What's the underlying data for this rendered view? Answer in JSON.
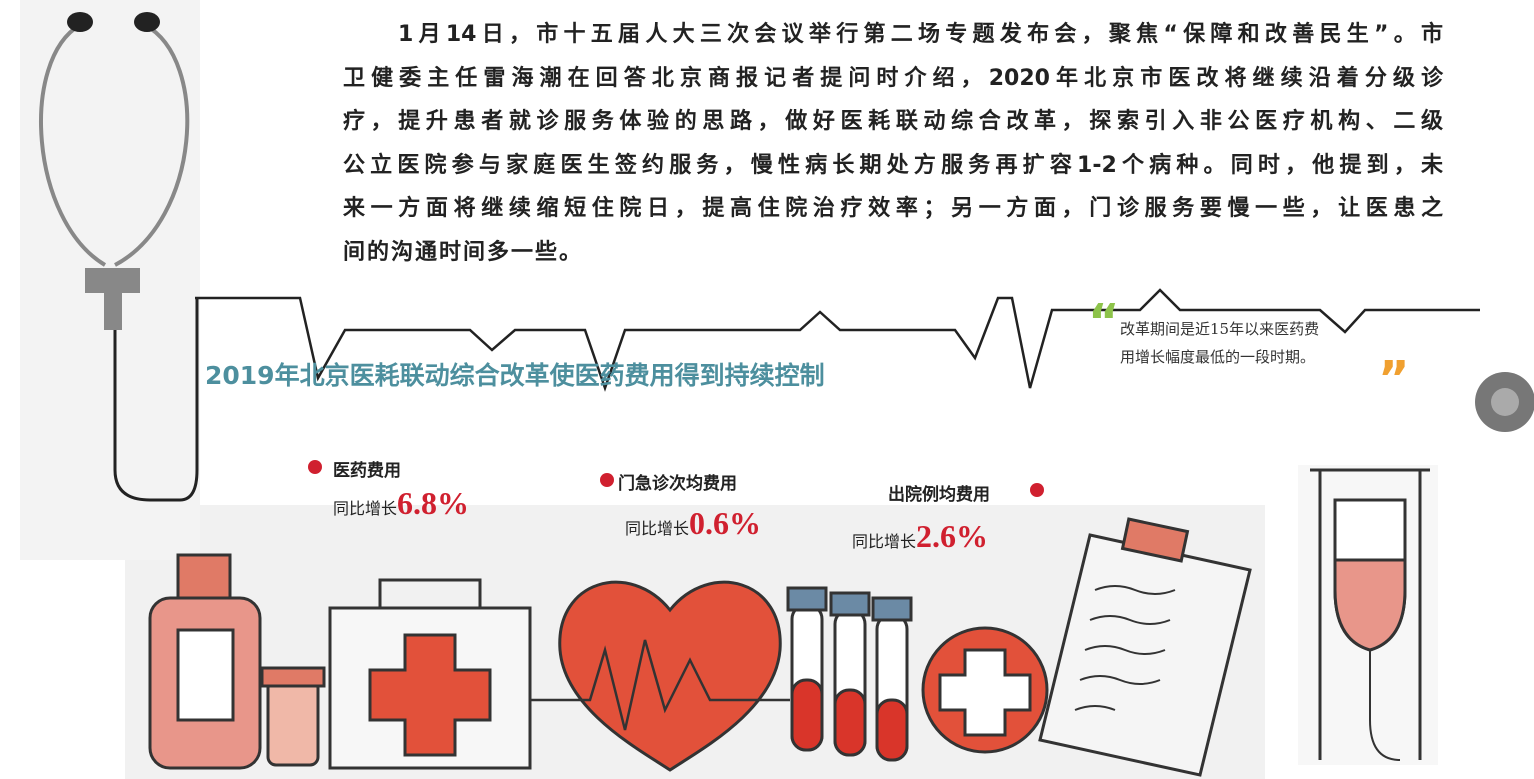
{
  "article": {
    "lines": [
      "1月14日，市十五届人大三次会议举行第二场专题发布会，聚焦“保障和改善民生”。市",
      "卫健委主任雷海潮在回答北京商报记者提问时介绍，2020年北京市医改将继续沿着分级诊",
      "疗，提升患者就诊服务体验的思路，做好医耗联动综合改革，探索引入非公医疗机构、二级",
      "公立医院参与家庭医生签约服务，慢性病长期处方服务再扩容1-2个病种。同时，他提到，未",
      "来一方面将继续缩短住院日，提高住院治疗效率；另一方面，门诊服务要慢一些，让医患之",
      "间的沟通时间多一些。"
    ]
  },
  "graphic": {
    "title": "2019年北京医耗联动综合改革使医药费用得到持续控制",
    "quote": [
      "改革期间是近15年以来医药费",
      "用增长幅度最低的一段时期。"
    ],
    "stats": [
      {
        "label": "医药费用",
        "prefix": "同比增长",
        "value": "6.8%"
      },
      {
        "label": "门急诊次均费用",
        "prefix": "同比增长",
        "value": "0.6%"
      },
      {
        "label": "出院例均费用",
        "prefix": "同比增长",
        "value": "2.6%"
      }
    ]
  }
}
